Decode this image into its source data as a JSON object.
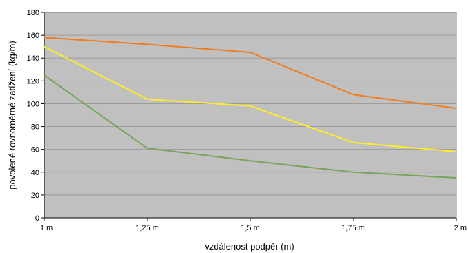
{
  "chart_data": {
    "type": "line",
    "title": "",
    "xlabel": "vzdálenost podpěr (m)",
    "ylabel": "povolené rovnoměrné zatížení (kg/m)",
    "categories": [
      "1 m",
      "1,25 m",
      "1,5 m",
      "1,75 m",
      "2 m"
    ],
    "ylim": [
      0,
      180
    ],
    "yticks": [
      0,
      20,
      40,
      60,
      80,
      100,
      120,
      140,
      160,
      180
    ],
    "grid": true,
    "legend": "none",
    "plot_background": "#c0c0c0",
    "series": [
      {
        "color": "#f07c1e",
        "values": [
          158,
          152,
          145,
          108,
          96
        ]
      },
      {
        "color": "#ffee22",
        "values": [
          150,
          104,
          98,
          66,
          58
        ]
      },
      {
        "color": "#76a45a",
        "values": [
          125,
          61,
          50,
          40,
          35
        ]
      }
    ]
  }
}
